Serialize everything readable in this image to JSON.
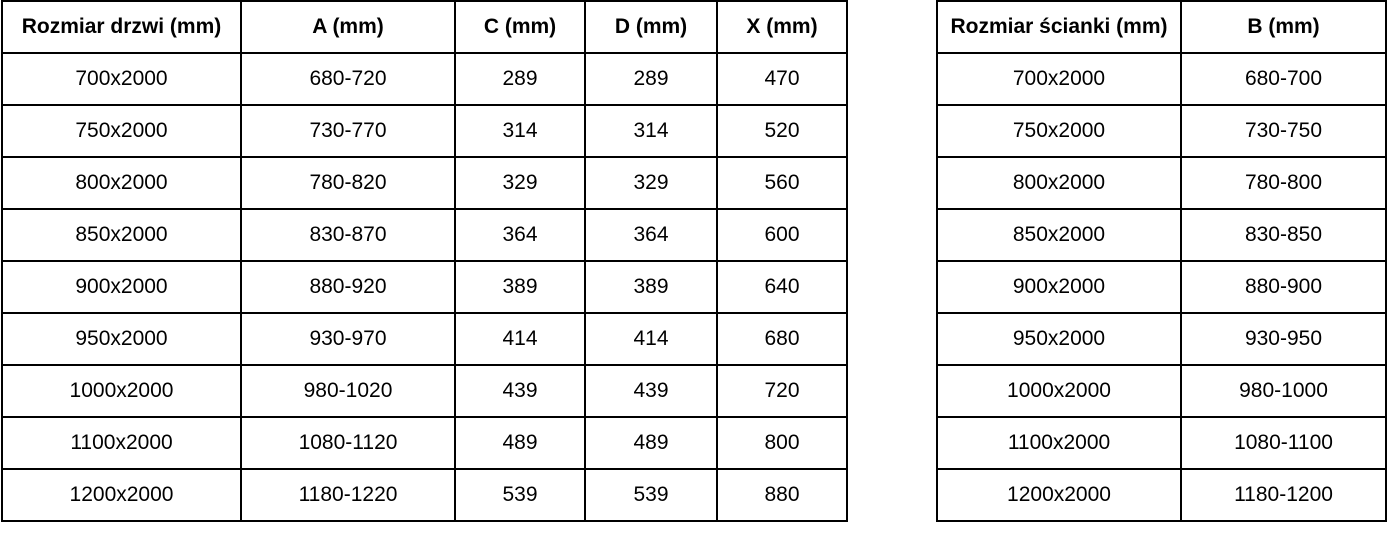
{
  "colors": {
    "border": "#000000",
    "text": "#000000",
    "background": "#ffffff"
  },
  "door_table": {
    "headers": [
      "Rozmiar drzwi (mm)",
      "A (mm)",
      "C (mm)",
      "D (mm)",
      "X (mm)"
    ],
    "rows": [
      [
        "700x2000",
        "680-720",
        "289",
        "289",
        "470"
      ],
      [
        "750x2000",
        "730-770",
        "314",
        "314",
        "520"
      ],
      [
        "800x2000",
        "780-820",
        "329",
        "329",
        "560"
      ],
      [
        "850x2000",
        "830-870",
        "364",
        "364",
        "600"
      ],
      [
        "900x2000",
        "880-920",
        "389",
        "389",
        "640"
      ],
      [
        "950x2000",
        "930-970",
        "414",
        "414",
        "680"
      ],
      [
        "1000x2000",
        "980-1020",
        "439",
        "439",
        "720"
      ],
      [
        "1100x2000",
        "1080-1120",
        "489",
        "489",
        "800"
      ],
      [
        "1200x2000",
        "1180-1220",
        "539",
        "539",
        "880"
      ]
    ]
  },
  "wall_table": {
    "headers": [
      "Rozmiar ścianki (mm)",
      "B (mm)"
    ],
    "rows": [
      [
        "700x2000",
        "680-700"
      ],
      [
        "750x2000",
        "730-750"
      ],
      [
        "800x2000",
        "780-800"
      ],
      [
        "850x2000",
        "830-850"
      ],
      [
        "900x2000",
        "880-900"
      ],
      [
        "950x2000",
        "930-950"
      ],
      [
        "1000x2000",
        "980-1000"
      ],
      [
        "1100x2000",
        "1080-1100"
      ],
      [
        "1200x2000",
        "1180-1200"
      ]
    ]
  }
}
